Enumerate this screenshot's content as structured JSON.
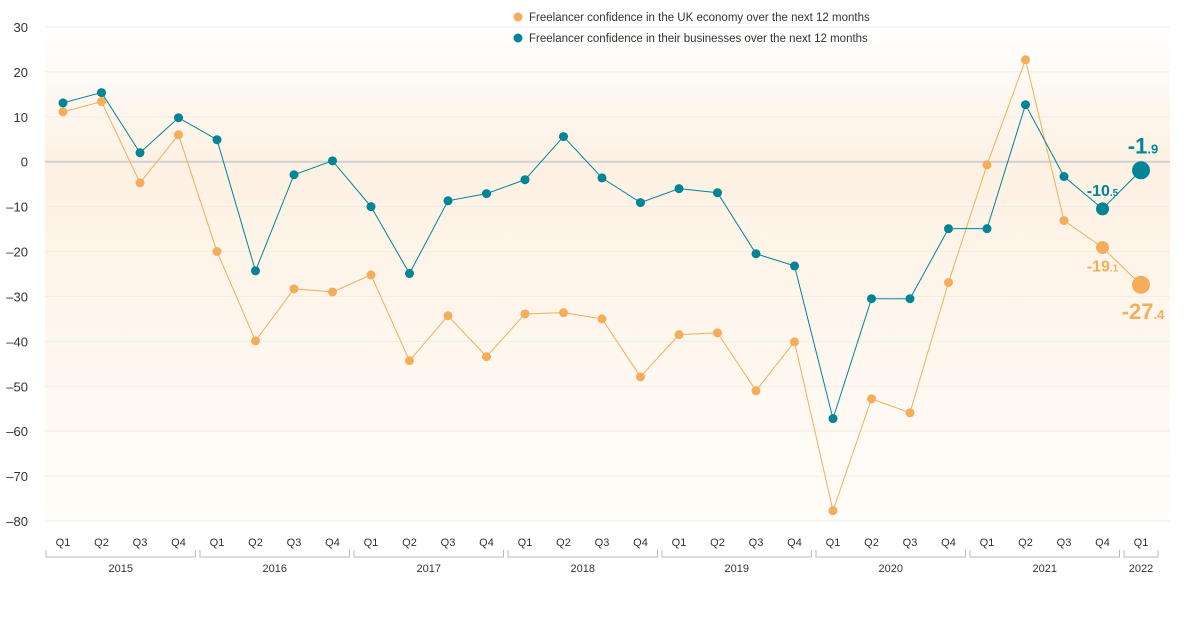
{
  "chart_data": {
    "type": "line",
    "title": "",
    "xlabel": "",
    "ylabel": "",
    "ylim": [
      -80,
      30
    ],
    "yticks": [
      30,
      20,
      10,
      0,
      -10,
      -20,
      -30,
      -40,
      -50,
      -60,
      -70,
      -80
    ],
    "grid": true,
    "legend_position": "top-center",
    "quarters": [
      "Q1",
      "Q2",
      "Q3",
      "Q4",
      "Q1",
      "Q2",
      "Q3",
      "Q4",
      "Q1",
      "Q2",
      "Q3",
      "Q4",
      "Q1",
      "Q2",
      "Q3",
      "Q4",
      "Q1",
      "Q2",
      "Q3",
      "Q4",
      "Q1",
      "Q2",
      "Q3",
      "Q4",
      "Q1",
      "Q2",
      "Q3",
      "Q4",
      "Q1"
    ],
    "years": [
      {
        "label": "2015",
        "quarters": 4
      },
      {
        "label": "2016",
        "quarters": 4
      },
      {
        "label": "2017",
        "quarters": 4
      },
      {
        "label": "2018",
        "quarters": 4
      },
      {
        "label": "2019",
        "quarters": 4
      },
      {
        "label": "2020",
        "quarters": 4
      },
      {
        "label": "2021",
        "quarters": 4
      },
      {
        "label": "2022",
        "quarters": 1
      }
    ],
    "series": [
      {
        "name": "Freelancer confidence in the UK economy over the next 12 months",
        "color": "#f5ad5b",
        "values": [
          11.1,
          13.4,
          -4.7,
          6.0,
          -20.0,
          -39.9,
          -28.3,
          -29.0,
          -25.2,
          -44.3,
          -34.3,
          -43.4,
          -33.9,
          -33.6,
          -35.0,
          -47.9,
          -38.5,
          -38.1,
          -51.0,
          -40.1,
          -77.7,
          -52.8,
          -55.9,
          -26.9,
          -0.7,
          22.7,
          -13.1,
          -19.1,
          -27.4
        ],
        "annotations": [
          {
            "index": 27,
            "label": "-19.1"
          },
          {
            "index": 28,
            "label": "-27.4"
          }
        ]
      },
      {
        "name": "Freelancer confidence in their businesses over the next 12 months",
        "color": "#008596",
        "values": [
          13.1,
          15.4,
          2.0,
          9.8,
          4.9,
          -24.3,
          -2.9,
          0.2,
          -10.0,
          -24.9,
          -8.7,
          -7.1,
          -4.0,
          5.6,
          -3.6,
          -9.1,
          -6.0,
          -6.9,
          -20.5,
          -23.2,
          -57.2,
          -30.5,
          -30.5,
          -14.9,
          -14.9,
          12.7,
          -3.3,
          -10.5,
          -1.9
        ],
        "annotations": [
          {
            "index": 27,
            "label": "-10.5"
          },
          {
            "index": 28,
            "label": "-1.9"
          }
        ]
      }
    ]
  }
}
